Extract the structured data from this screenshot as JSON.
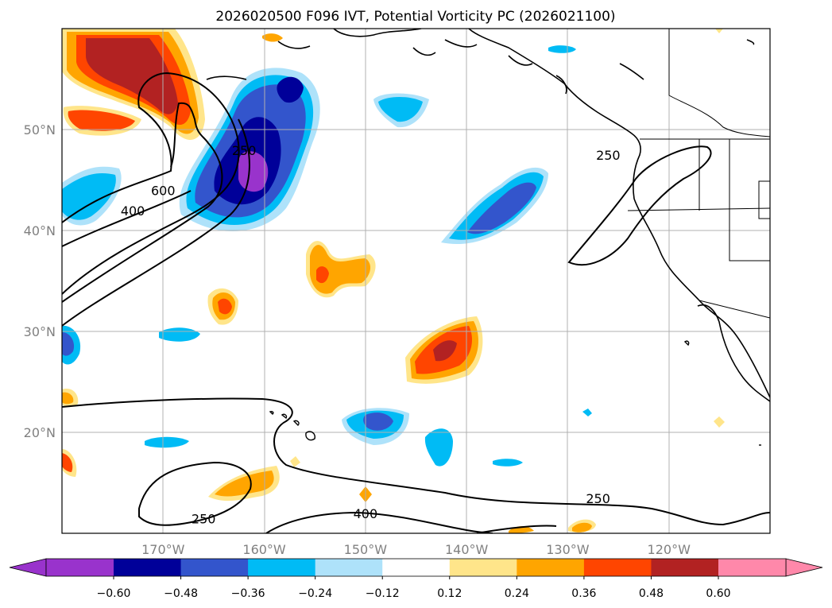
{
  "chart_data": {
    "type": "map-contour",
    "title": "2026020500 F096 IVT, Potential Vorticity PC (2026021100)",
    "x_ticks": [
      {
        "lon": -170,
        "label": "170°W"
      },
      {
        "lon": -160,
        "label": "160°W"
      },
      {
        "lon": -150,
        "label": "150°W"
      },
      {
        "lon": -140,
        "label": "140°W"
      },
      {
        "lon": -130,
        "label": "130°W"
      },
      {
        "lon": -120,
        "label": "120°W"
      }
    ],
    "y_ticks": [
      {
        "lat": 50,
        "label": "50°N"
      },
      {
        "lat": 40,
        "label": "40°N"
      },
      {
        "lat": 30,
        "label": "30°N"
      },
      {
        "lat": 20,
        "label": "20°N"
      }
    ],
    "lon_range": [
      -180,
      -110
    ],
    "lat_range": [
      10,
      60
    ],
    "colorbar": {
      "colors": [
        "#9933CC",
        "#000099",
        "#3355CC",
        "#00BBF5",
        "#AEE2FA",
        "#FFFFFF",
        "#FFE58A",
        "#FFA500",
        "#FF4500",
        "#B22222",
        "#FF88AA"
      ],
      "levels": [
        "−0.60",
        "−0.48",
        "−0.36",
        "−0.24",
        "−0.12",
        "0.12",
        "0.24",
        "0.36",
        "0.48",
        "0.60"
      ]
    },
    "contour_labels": [
      {
        "text": "250",
        "lon": -162,
        "lat": 47.5
      },
      {
        "text": "400",
        "lon": -173,
        "lat": 41.5
      },
      {
        "text": "600",
        "lon": -170,
        "lat": 43.5
      },
      {
        "text": "250",
        "lon": -126,
        "lat": 47
      },
      {
        "text": "250",
        "lon": -127,
        "lat": 13
      },
      {
        "text": "400",
        "lon": -150,
        "lat": 11.5
      },
      {
        "text": "250",
        "lon": -166,
        "lat": 11
      }
    ]
  }
}
